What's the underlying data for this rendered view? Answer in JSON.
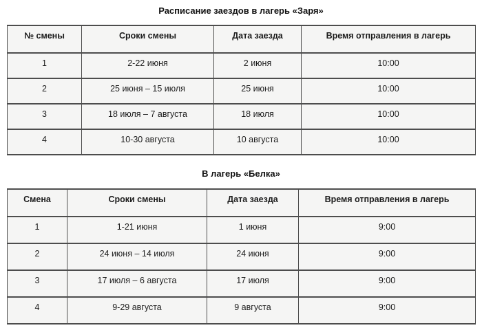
{
  "colors": {
    "page_background": "#ffffff",
    "cell_background": "#f5f5f4",
    "border": "#4d4d4d",
    "text": "#1c1c1c"
  },
  "sections": [
    {
      "title": "Расписание заездов в лагерь «Заря»",
      "table": {
        "headers": [
          "№ смены",
          "Сроки смены",
          "Дата заезда",
          "Время отправления в лагерь"
        ],
        "rows": [
          [
            "1",
            "2-22 июня",
            "2 июня",
            "10:00"
          ],
          [
            "2",
            "25 июня – 15 июля",
            "25 июня",
            "10:00"
          ],
          [
            "3",
            "18 июля – 7 августа",
            "18 июля",
            "10:00"
          ],
          [
            "4",
            "10-30 августа",
            "10 августа",
            "10:00"
          ]
        ]
      }
    },
    {
      "title": "В лагерь «Белка»",
      "table": {
        "headers": [
          "Смена",
          "Сроки смены",
          "Дата заезда",
          "Время отправления в лагерь"
        ],
        "rows": [
          [
            "1",
            "1-21 июня",
            "1 июня",
            "9:00"
          ],
          [
            "2",
            "24 июня – 14 июля",
            "24 июня",
            "9:00"
          ],
          [
            "3",
            "17 июля – 6 августа",
            "17 июля",
            "9:00"
          ],
          [
            "4",
            "9-29 августа",
            "9 августа",
            "9:00"
          ]
        ]
      }
    }
  ]
}
